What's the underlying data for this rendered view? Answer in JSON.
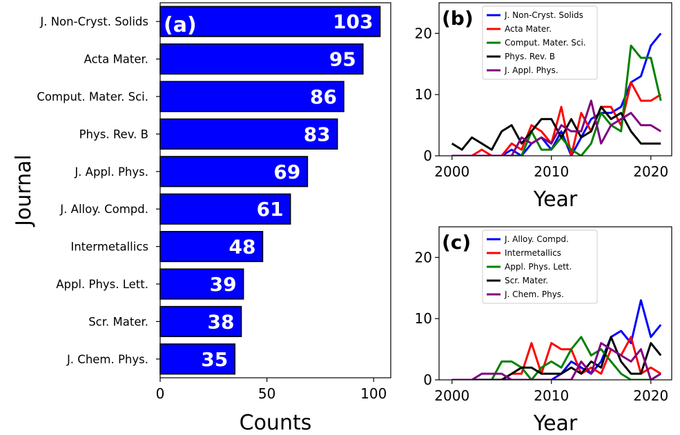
{
  "chart_data": [
    {
      "panel": "(a)",
      "type": "bar",
      "orientation": "horizontal",
      "ylabel": "Journal",
      "xlabel": "Counts",
      "xlim": [
        0,
        108
      ],
      "xticks": [
        0,
        50,
        100
      ],
      "bar_color": "#0000ff",
      "categories": [
        "J. Non-Cryst. Solids",
        "Acta Mater.",
        "Comput. Mater. Sci.",
        "Phys. Rev. B",
        "J. Appl. Phys.",
        "J. Alloy. Compd.",
        "Intermetallics",
        "Appl. Phys. Lett.",
        "Scr. Mater.",
        "J. Chem. Phys."
      ],
      "values": [
        103,
        95,
        86,
        83,
        69,
        61,
        48,
        39,
        38,
        35
      ]
    },
    {
      "panel": "(b)",
      "type": "line",
      "xlabel": "Year",
      "ylabel": "",
      "xlim": [
        1998.7,
        2022.1
      ],
      "ylim": [
        0,
        25
      ],
      "xticks": [
        2000,
        2010,
        2020
      ],
      "yticks": [
        0,
        10,
        20
      ],
      "legend": "top-left",
      "x": [
        2000,
        2001,
        2002,
        2003,
        2004,
        2005,
        2006,
        2007,
        2008,
        2009,
        2010,
        2011,
        2012,
        2013,
        2014,
        2015,
        2016,
        2017,
        2018,
        2019,
        2020,
        2021
      ],
      "series": [
        {
          "name": "J. Non-Cryst. Solids",
          "color": "#0000ff",
          "values": [
            0,
            0,
            0,
            0,
            0,
            0,
            1,
            0,
            2,
            3,
            1,
            4,
            0,
            3,
            6,
            7,
            7,
            8,
            12,
            13,
            18,
            20
          ]
        },
        {
          "name": "Acta Mater.",
          "color": "#ff0000",
          "values": [
            0,
            0,
            0,
            1,
            0,
            0,
            2,
            1,
            5,
            4,
            2,
            8,
            0,
            7,
            4,
            8,
            8,
            5,
            12,
            9,
            9,
            10
          ]
        },
        {
          "name": "Comput. Mater. Sci.",
          "color": "#008000",
          "values": [
            0,
            0,
            0,
            0,
            0,
            0,
            0,
            0,
            4,
            1,
            1,
            3,
            1,
            0,
            2,
            7,
            5,
            4,
            18,
            16,
            16,
            9
          ]
        },
        {
          "name": "Phys. Rev. B",
          "color": "#000000",
          "values": [
            2,
            1,
            3,
            2,
            1,
            4,
            5,
            2,
            4,
            6,
            6,
            3,
            6,
            3,
            4,
            8,
            6,
            7,
            4,
            2,
            2,
            2
          ]
        },
        {
          "name": "J. Appl. Phys.",
          "color": "#800080",
          "values": [
            0,
            0,
            0,
            0,
            0,
            0,
            0,
            3,
            2,
            3,
            2,
            5,
            4,
            4,
            9,
            2,
            5,
            6,
            7,
            5,
            5,
            4
          ]
        }
      ]
    },
    {
      "panel": "(c)",
      "type": "line",
      "xlabel": "Year",
      "ylabel": "",
      "xlim": [
        1998.7,
        2022.1
      ],
      "ylim": [
        0,
        25
      ],
      "xticks": [
        2000,
        2010,
        2020
      ],
      "yticks": [
        0,
        10,
        20
      ],
      "legend": "top-left",
      "x": [
        2000,
        2001,
        2002,
        2003,
        2004,
        2005,
        2006,
        2007,
        2008,
        2009,
        2010,
        2011,
        2012,
        2013,
        2014,
        2015,
        2016,
        2017,
        2018,
        2019,
        2020,
        2021
      ],
      "series": [
        {
          "name": "J. Alloy. Compd.",
          "color": "#0000ff",
          "values": [
            0,
            0,
            0,
            0,
            0,
            0,
            0,
            0,
            0,
            0,
            0,
            1,
            3,
            2,
            1,
            3,
            7,
            8,
            6,
            13,
            7,
            9
          ]
        },
        {
          "name": "Intermetallics",
          "color": "#ff0000",
          "values": [
            0,
            0,
            0,
            0,
            0,
            0,
            1,
            1,
            6,
            1,
            6,
            5,
            5,
            1,
            2,
            1,
            5,
            4,
            7,
            1,
            2,
            1
          ]
        },
        {
          "name": "Appl. Phys. Lett.",
          "color": "#008000",
          "values": [
            0,
            0,
            0,
            0,
            0,
            3,
            3,
            2,
            0,
            2,
            3,
            2,
            5,
            7,
            4,
            5,
            3,
            1,
            0,
            0,
            0,
            1
          ]
        },
        {
          "name": "Scr. Mater.",
          "color": "#000000",
          "values": [
            0,
            0,
            0,
            0,
            0,
            0,
            1,
            2,
            2,
            1,
            1,
            1,
            2,
            1,
            3,
            2,
            7,
            3,
            1,
            1,
            6,
            4
          ]
        },
        {
          "name": "J. Chem. Phys.",
          "color": "#800080",
          "values": [
            0,
            0,
            0,
            1,
            1,
            1,
            0,
            0,
            0,
            0,
            0,
            0,
            0,
            3,
            1,
            6,
            5,
            4,
            3,
            5,
            0,
            1
          ]
        }
      ]
    }
  ]
}
